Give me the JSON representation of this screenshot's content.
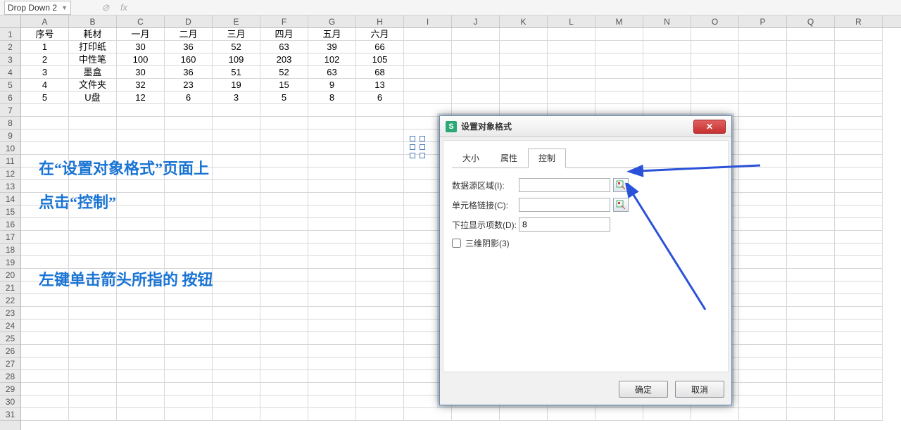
{
  "nameBox": "Drop Down 2",
  "fxLabel": "fx",
  "columns": [
    "A",
    "B",
    "C",
    "D",
    "E",
    "F",
    "G",
    "H",
    "I",
    "J",
    "K",
    "L",
    "M",
    "N",
    "O",
    "P",
    "Q",
    "R"
  ],
  "rowCount": 31,
  "table": {
    "headers": [
      "序号",
      "耗材",
      "一月",
      "二月",
      "三月",
      "四月",
      "五月",
      "六月"
    ],
    "rows": [
      [
        "1",
        "打印纸",
        "30",
        "36",
        "52",
        "63",
        "39",
        "66"
      ],
      [
        "2",
        "中性笔",
        "100",
        "160",
        "109",
        "203",
        "102",
        "105"
      ],
      [
        "3",
        "墨盒",
        "30",
        "36",
        "51",
        "52",
        "63",
        "68"
      ],
      [
        "4",
        "文件夹",
        "32",
        "23",
        "19",
        "15",
        "9",
        "13"
      ],
      [
        "5",
        "U盘",
        "12",
        "6",
        "3",
        "5",
        "8",
        "6"
      ]
    ]
  },
  "instructions": {
    "line1": "在“设置对象格式”页面上",
    "line2": "点击“控制”",
    "line3": "左键单击箭头所指的 按钮"
  },
  "dialog": {
    "title": "设置对象格式",
    "iconLetter": "S",
    "tabs": {
      "size": "大小",
      "props": "属性",
      "control": "控制"
    },
    "activeTab": "control",
    "fields": {
      "sourceLabel": "数据源区域(I):",
      "sourceValue": "",
      "linkLabel": "单元格链接(C):",
      "linkValue": "",
      "dropLabel": "下拉显示项数(D):",
      "dropValue": "8",
      "shadowLabel": "三维阴影(3)",
      "shadowChecked": false
    },
    "buttons": {
      "ok": "确定",
      "cancel": "取消"
    }
  },
  "colors": {
    "instruction": "#1a74d4",
    "arrow": "#2a52d8",
    "dialogBorder": "#6a8bab",
    "closeBtn": "#c83030"
  }
}
